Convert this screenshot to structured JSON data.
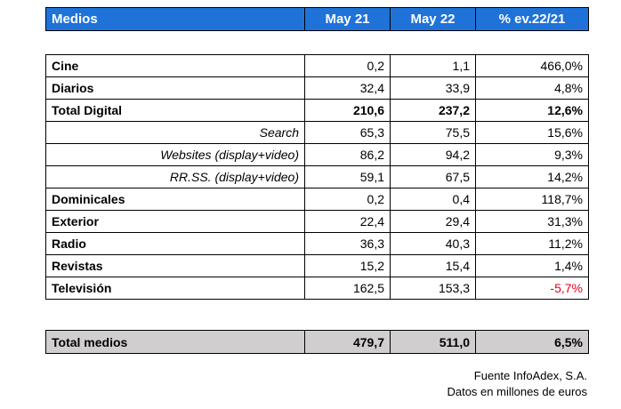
{
  "header": {
    "medium": "Medios",
    "col1": "May 21",
    "col2": "May 22",
    "col3": "% ev.22/21"
  },
  "rows": [
    {
      "name": "Cine",
      "v1": "0,2",
      "v2": "1,1",
      "pct": "466,0%"
    },
    {
      "name": "Diarios",
      "v1": "32,4",
      "v2": "33,9",
      "pct": "4,8%"
    },
    {
      "name": "Total Digital",
      "v1": "210,6",
      "v2": "237,2",
      "pct": "12,6%"
    },
    {
      "name": "Search",
      "v1": "65,3",
      "v2": "75,5",
      "pct": "15,6%"
    },
    {
      "name": "Websites (display+video)",
      "v1": "86,2",
      "v2": "94,2",
      "pct": "9,3%"
    },
    {
      "name": "RR.SS. (display+video)",
      "v1": "59,1",
      "v2": "67,5",
      "pct": "14,2%"
    },
    {
      "name": "Dominicales",
      "v1": "0,2",
      "v2": "0,4",
      "pct": "118,7%"
    },
    {
      "name": "Exterior",
      "v1": "22,4",
      "v2": "29,4",
      "pct": "31,3%"
    },
    {
      "name": "Radio",
      "v1": "36,3",
      "v2": "40,3",
      "pct": "11,2%"
    },
    {
      "name": "Revistas",
      "v1": "15,2",
      "v2": "15,4",
      "pct": "1,4%"
    },
    {
      "name": "Televisión",
      "v1": "162,5",
      "v2": "153,3",
      "pct": "-5,7%"
    }
  ],
  "total": {
    "name": "Total medios",
    "v1": "479,7",
    "v2": "511,0",
    "pct": "6,5%"
  },
  "footer": {
    "source": "Fuente InfoAdex, S.A.",
    "units": "Datos en millones de euros"
  },
  "colors": {
    "header_bg": "#1f73d8",
    "total_bg": "#d0cece",
    "negative": "#e8001c"
  }
}
